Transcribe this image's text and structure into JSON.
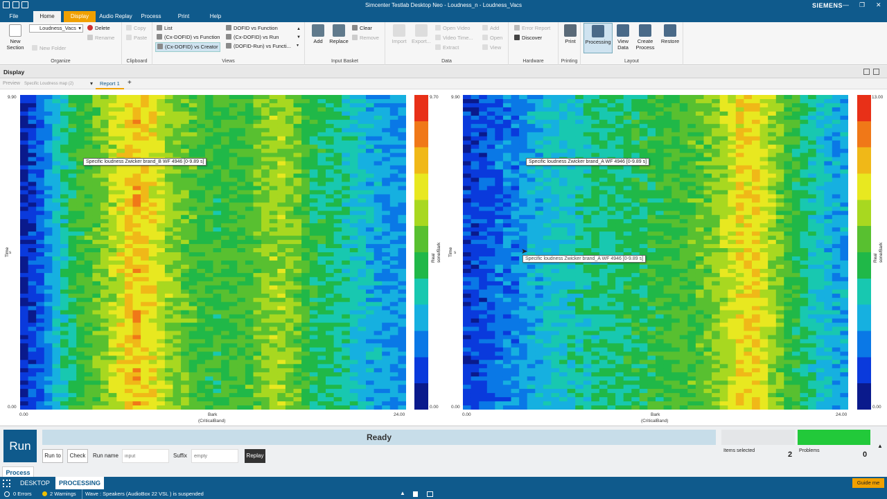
{
  "window": {
    "title": "Simcenter Testlab Desktop Neo - Loudness_n - Loudness_Vacs",
    "brand": "SIEMENS"
  },
  "menu": [
    "File",
    "Home",
    "Display",
    "Audio Replay",
    "Process",
    "Print",
    "Help"
  ],
  "ribbon": {
    "organize": {
      "label": "Organize",
      "new_section": "New\nSection",
      "combo": "Loudness_Vacs",
      "delete": "Delete",
      "rename": "Rename",
      "new_folder": "New Folder"
    },
    "clipboard": {
      "label": "Clipboard",
      "copy": "Copy",
      "paste": "Paste"
    },
    "views": {
      "label": "Views",
      "items": [
        "List",
        "(Cx-DOFID) vs Function",
        "(Cx-DOFID) vs Creator",
        "DOFID vs Function",
        "(Cx-DOFID) vs Run",
        "(DOFID-Run) vs Functi..."
      ]
    },
    "input_basket": {
      "label": "Input Basket",
      "add": "Add",
      "replace": "Replace",
      "clear": "Clear",
      "remove": "Remove"
    },
    "data": {
      "label": "Data",
      "import": "Import",
      "export": "Export...",
      "open_video": "Open Video",
      "video_time": "Video Time...",
      "extract": "Extract",
      "add": "Add",
      "open": "Open",
      "view": "View"
    },
    "hardware": {
      "label": "Hardware",
      "error_report": "Error Report",
      "discover": "Discover"
    },
    "printing": {
      "label": "Printing",
      "print": "Print"
    },
    "layout": {
      "label": "Layout",
      "processing": "Processing",
      "view_data": "View\nData",
      "create_process": "Create\nProcess",
      "restore": "Restore"
    }
  },
  "display_bar": {
    "title": "Display"
  },
  "tabs": {
    "preview": "Preview",
    "preview_item": "Specific Loudness map (2)",
    "report": "Report 1",
    "add": "+"
  },
  "plots": [
    {
      "y_axis": {
        "label": "Time",
        "unit": "s",
        "max": "9.90",
        "min": "0.00"
      },
      "x_axis": {
        "label": "Bark",
        "unit": "(CriticalBand)",
        "min": "0.00",
        "max": "24.00"
      },
      "colorbar": {
        "max": "9.70",
        "min": "0.00",
        "label": "Real",
        "unit": "sone/Bark"
      },
      "tooltip": "Specific loudness Zwicker brand_B WF 4946 [0-9.89 s]",
      "profile": [
        0.08,
        0.18,
        0.32,
        0.45,
        0.52,
        0.58,
        0.7,
        0.78,
        0.72,
        0.6,
        0.55,
        0.5,
        0.47,
        0.5,
        0.52,
        0.6,
        0.62,
        0.55,
        0.45,
        0.42,
        0.38,
        0.32,
        0.28,
        0.25
      ]
    },
    {
      "y_axis": {
        "label": "Time",
        "unit": "s",
        "max": "9.90",
        "min": "0.00"
      },
      "x_axis": {
        "label": "Bark",
        "unit": "(CriticalBand)",
        "min": "0.00",
        "max": "24.00"
      },
      "colorbar": {
        "max": "13.00",
        "min": "0.00",
        "label": "Real",
        "unit": "sone/Bark"
      },
      "tooltip": "Specific loudness Zwicker brand_A WF 4946 [0-9.89 s]",
      "hover_tooltip": "Specific loudness Zwicker brand_A WF 4946 [0-9.89 s]",
      "profile": [
        0.12,
        0.15,
        0.2,
        0.22,
        0.28,
        0.32,
        0.35,
        0.38,
        0.4,
        0.42,
        0.44,
        0.46,
        0.48,
        0.5,
        0.52,
        0.55,
        0.62,
        0.72,
        0.74,
        0.62,
        0.5,
        0.42,
        0.34,
        0.28
      ]
    }
  ],
  "run_panel": {
    "run": "Run",
    "status": "Ready",
    "run_to": "Run to",
    "check": "Check",
    "run_name_label": "Run name",
    "run_name_placeholder": "input",
    "suffix_label": "Suffix",
    "suffix_placeholder": "empty",
    "replay": "Replay",
    "items_selected_label": "Items selected",
    "items_selected": "2",
    "problems_label": "Problems",
    "problems": "0"
  },
  "process_tab": "Process",
  "nav": {
    "desktop": "DESKTOP",
    "processing": "PROCESSING",
    "guide": "Guide me"
  },
  "status": {
    "errors": "0 Errors",
    "warnings": "2 Warnings",
    "message": "Wave : Speakers (AudioBox 22 VSL ) is suspended"
  }
}
